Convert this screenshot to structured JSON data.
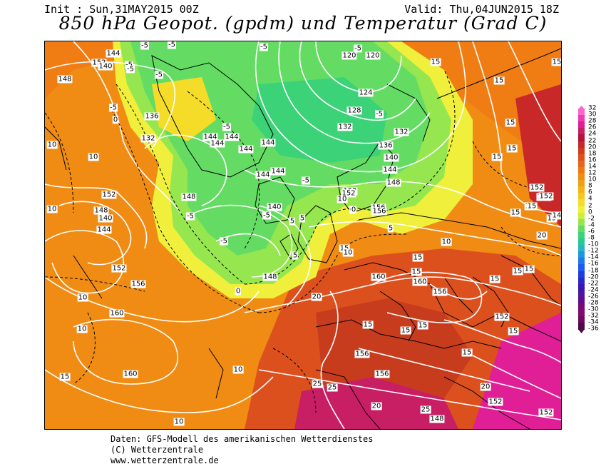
{
  "header": {
    "init": "Init : Sun,31MAY2015 00Z",
    "valid": "Valid: Thu,04JUN2015 18Z",
    "title": "850 hPa Geopot. (gpdm) und Temperatur (Grad C)"
  },
  "legend": {
    "ticks": [
      "32",
      "30",
      "28",
      "26",
      "24",
      "22",
      "20",
      "18",
      "16",
      "14",
      "12",
      "10",
      "8",
      "6",
      "4",
      "2",
      "0",
      "-2",
      "-4",
      "-6",
      "-8",
      "-10",
      "-12",
      "-14",
      "-16",
      "-18",
      "-20",
      "-22",
      "-24",
      "-26",
      "-28",
      "-30",
      "-32",
      "-34",
      "-36"
    ],
    "colors": [
      "#ff66cc",
      "#f03cb4",
      "#e01e96",
      "#c81e64",
      "#b4143c",
      "#c82828",
      "#d23c1e",
      "#dc501e",
      "#e6641e",
      "#f07814",
      "#f08c14",
      "#f0a014",
      "#f5b414",
      "#f5c81e",
      "#f5dc28",
      "#f0f03c",
      "#c8f03c",
      "#96e650",
      "#64dc64",
      "#3cd278",
      "#28c896",
      "#28b4c8",
      "#1e96dc",
      "#1e78f0",
      "#1e5af0",
      "#1e3cdc",
      "#2828c8",
      "#3c14b4",
      "#5014a0",
      "#640a8c",
      "#780a78",
      "#820a6e",
      "#6e0a5a",
      "#500a46"
    ]
  },
  "map_labels": [
    {
      "t": "152"
    },
    {
      "t": "144"
    },
    {
      "t": "148"
    },
    {
      "t": "140"
    },
    {
      "t": "136"
    },
    {
      "t": "132"
    },
    {
      "t": "-5"
    },
    {
      "t": "0"
    },
    {
      "t": "-5"
    },
    {
      "t": "-5"
    },
    {
      "t": "144"
    },
    {
      "t": "144"
    },
    {
      "t": "144"
    },
    {
      "t": "144"
    },
    {
      "t": "144"
    },
    {
      "t": "144"
    },
    {
      "t": "144"
    },
    {
      "t": "140"
    },
    {
      "t": "148"
    },
    {
      "t": "-5"
    },
    {
      "t": "-5"
    },
    {
      "t": "-5"
    },
    {
      "t": "0"
    },
    {
      "t": "5"
    },
    {
      "t": "5"
    },
    {
      "t": "148"
    },
    {
      "t": "0"
    },
    {
      "t": "-5"
    },
    {
      "t": "152"
    },
    {
      "t": "156"
    },
    {
      "t": "152"
    },
    {
      "t": "148"
    },
    {
      "t": "140"
    },
    {
      "t": "144"
    },
    {
      "t": "152"
    },
    {
      "t": "10"
    },
    {
      "t": "10"
    },
    {
      "t": "10"
    },
    {
      "t": "10"
    },
    {
      "t": "156"
    },
    {
      "t": "160"
    },
    {
      "t": "10"
    },
    {
      "t": "15"
    },
    {
      "t": "10"
    },
    {
      "t": "160"
    },
    {
      "t": "10"
    },
    {
      "t": "15"
    },
    {
      "t": "120"
    },
    {
      "t": "120"
    },
    {
      "t": "124"
    },
    {
      "t": "-5"
    },
    {
      "t": "128"
    },
    {
      "t": "132"
    },
    {
      "t": "-5"
    },
    {
      "t": "132"
    },
    {
      "t": "136"
    },
    {
      "t": "140"
    },
    {
      "t": "144"
    },
    {
      "t": "148"
    },
    {
      "t": "152"
    },
    {
      "t": "0"
    },
    {
      "t": "156"
    },
    {
      "t": "5"
    },
    {
      "t": "10"
    },
    {
      "t": "10"
    },
    {
      "t": "15"
    },
    {
      "t": "15"
    },
    {
      "t": "160"
    },
    {
      "t": "160"
    },
    {
      "t": "156"
    },
    {
      "t": "152"
    },
    {
      "t": "15"
    },
    {
      "t": "15"
    },
    {
      "t": "15"
    },
    {
      "t": "20"
    },
    {
      "t": "15"
    },
    {
      "t": "15"
    },
    {
      "t": "156"
    },
    {
      "t": "156"
    },
    {
      "t": "25"
    },
    {
      "t": "25"
    },
    {
      "t": "20"
    },
    {
      "t": "25"
    },
    {
      "t": "148"
    },
    {
      "t": "20"
    },
    {
      "t": "152"
    },
    {
      "t": "152"
    },
    {
      "t": "15"
    },
    {
      "t": "15"
    },
    {
      "t": "15"
    },
    {
      "t": "15"
    },
    {
      "t": "15"
    },
    {
      "t": "152"
    },
    {
      "t": "152"
    },
    {
      "t": "15"
    },
    {
      "t": "15"
    },
    {
      "t": "15"
    },
    {
      "t": "20"
    },
    {
      "t": "15"
    },
    {
      "t": "15"
    },
    {
      "t": "15"
    },
    {
      "t": "15"
    },
    {
      "t": "152"
    },
    {
      "t": "14"
    },
    {
      "t": "15"
    },
    {
      "t": "-5"
    },
    {
      "t": "-5"
    },
    {
      "t": "-5"
    },
    {
      "t": "-5"
    },
    {
      "t": "-5"
    },
    {
      "t": "5"
    },
    {
      "t": "10"
    }
  ],
  "footer": {
    "line1": "Daten: GFS-Modell des amerikanischen Wetterdienstes",
    "line2": "(C) Wetterzentrale",
    "line3": "www.wetterzentrale.de"
  }
}
